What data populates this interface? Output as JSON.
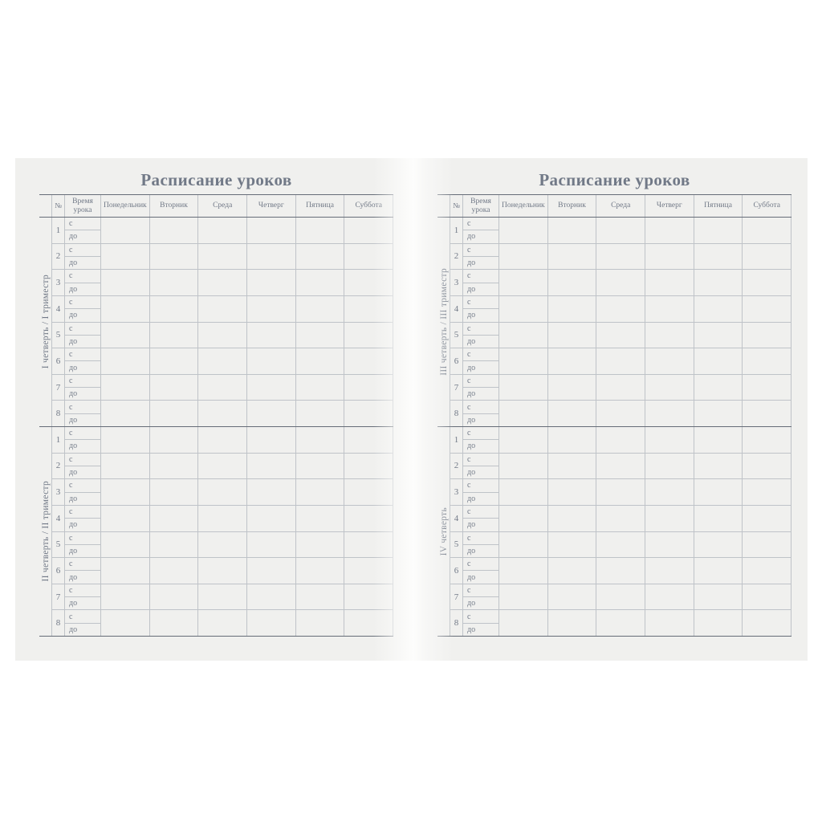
{
  "pages": [
    {
      "title": "Расписание уроков",
      "blocks": [
        {
          "label": "I четверть / I триместр"
        },
        {
          "label": "II четверть / II триместр"
        }
      ]
    },
    {
      "title": "Расписание уроков",
      "blocks": [
        {
          "label": "III четверть / III триместр"
        },
        {
          "label": "IV четверть"
        }
      ]
    }
  ],
  "table": {
    "header": {
      "number_col": "№",
      "time_col": "Время урока",
      "days": [
        "Понедельник",
        "Вторник",
        "Среда",
        "Четверг",
        "Пятница",
        "Суббота"
      ]
    },
    "time_from_label": "с",
    "time_to_label": "до",
    "lesson_numbers": [
      "1",
      "2",
      "3",
      "4",
      "5",
      "6",
      "7",
      "8"
    ]
  },
  "colors": {
    "text": "#717987",
    "line_thin": "#bfc3c8",
    "line_thick": "#656c77",
    "page_bg": "#f0f0ee",
    "backdrop": "#ffffff"
  }
}
